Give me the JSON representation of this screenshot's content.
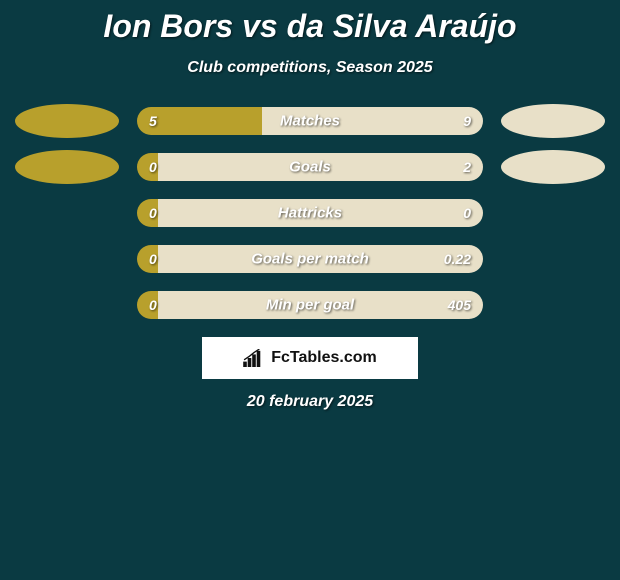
{
  "title": "Ion Bors vs da Silva Araújo",
  "subtitle": "Club competitions, Season 2025",
  "date": "20 february 2025",
  "logo_text": "FcTables.com",
  "colors": {
    "background": "#0a3a42",
    "left_player": "#b8a02c",
    "right_player": "#e8e0c8",
    "text": "#ffffff",
    "logo_bg": "#ffffff",
    "logo_text": "#111111"
  },
  "rows": [
    {
      "metric": "Matches",
      "left_value": "5",
      "right_value": "9",
      "left_pct": 36,
      "right_pct": 64,
      "show_ellipses": true
    },
    {
      "metric": "Goals",
      "left_value": "0",
      "right_value": "2",
      "left_pct": 6,
      "right_pct": 94,
      "show_ellipses": true
    },
    {
      "metric": "Hattricks",
      "left_value": "0",
      "right_value": "0",
      "left_pct": 6,
      "right_pct": 94,
      "show_ellipses": false
    },
    {
      "metric": "Goals per match",
      "left_value": "0",
      "right_value": "0.22",
      "left_pct": 6,
      "right_pct": 94,
      "show_ellipses": false
    },
    {
      "metric": "Min per goal",
      "left_value": "0",
      "right_value": "405",
      "left_pct": 6,
      "right_pct": 94,
      "show_ellipses": false
    }
  ]
}
